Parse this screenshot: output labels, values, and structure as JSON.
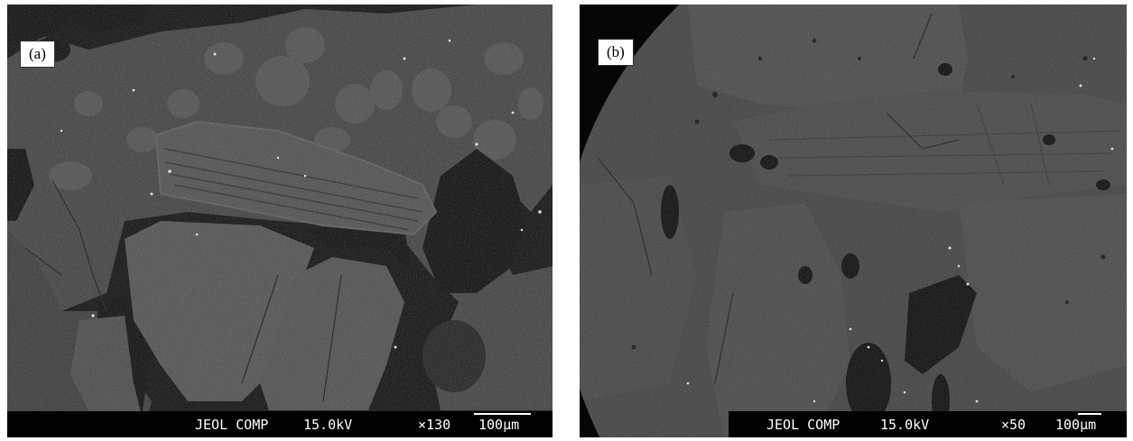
{
  "panels": [
    {
      "id": "a",
      "label": "(a)",
      "detector": "JEOL COMP",
      "voltage": "15.0kV",
      "magnification": "×130",
      "scale_bar": "100μm"
    },
    {
      "id": "b",
      "label": "(b)",
      "detector": "JEOL COMP",
      "voltage": "15.0kV",
      "magnification": "×50",
      "scale_bar": "100μm"
    }
  ],
  "colors": {
    "background": "#000000",
    "matrix": "#3a3a3a",
    "grain": "#4a4a4a",
    "highlight": "#e6e6e6",
    "label_bg": "#ffffff"
  }
}
